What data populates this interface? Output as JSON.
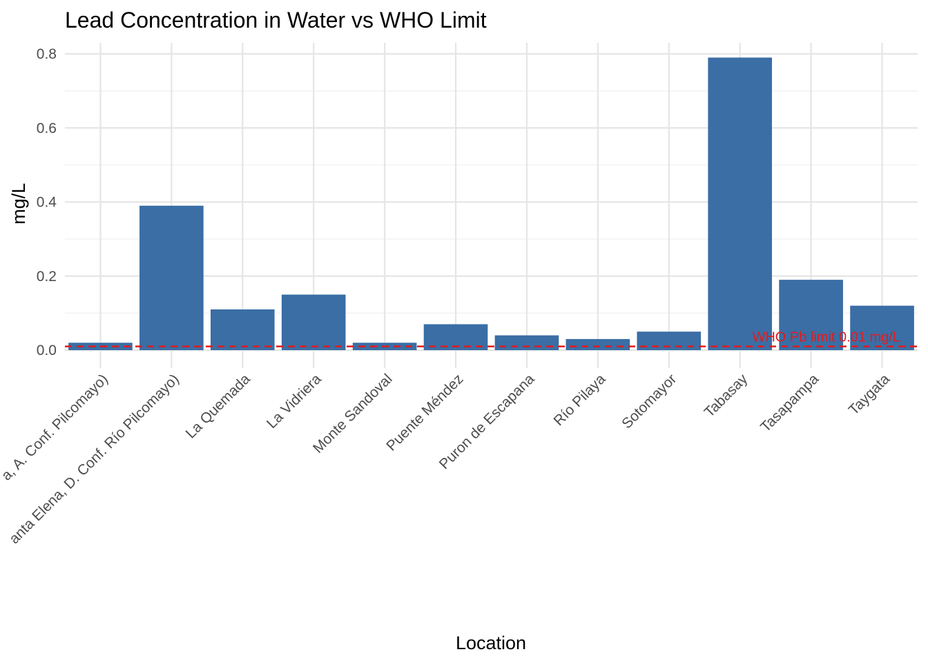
{
  "colors": {
    "bar": "#3A6EA5",
    "reference_line": "#E41A1C",
    "grid_major": "#E5E5E5",
    "grid_minor": "#F0F0F0",
    "background": "#FFFFFF"
  },
  "chart_data": {
    "type": "bar",
    "title": "Lead Concentration in Water vs WHO Limit",
    "xlabel": "Location",
    "ylabel": "mg/L",
    "ylim": [
      0,
      0.82
    ],
    "yticks": [
      0.0,
      0.2,
      0.4,
      0.6,
      0.8
    ],
    "ytick_labels": [
      "0.0",
      "0.2",
      "0.4",
      "0.6",
      "0.8"
    ],
    "grid": true,
    "legend": "none",
    "categories": [
      "a, A. Conf. Pilcomayo)",
      "anta Elena, D. Conf. Río Pilcomayo)",
      "La Quemada",
      "La Vidriera",
      "Monte Sandoval",
      "Puente Méndez",
      "Puron de Escapana",
      "Río Pilaya",
      "Sotomayor",
      "Tabasay",
      "Tasapampa",
      "Taygata"
    ],
    "values": [
      0.02,
      0.39,
      0.11,
      0.15,
      0.02,
      0.07,
      0.04,
      0.03,
      0.05,
      0.79,
      0.19,
      0.12
    ],
    "reference_line": {
      "value": 0.01,
      "label": "WHO Pb limit 0.01 mg/L",
      "style": "dashed"
    }
  }
}
